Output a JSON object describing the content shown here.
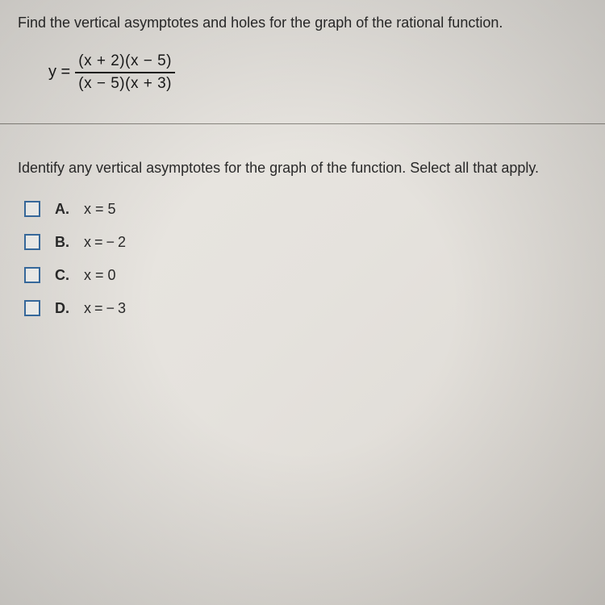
{
  "question": {
    "prompt": "Find the vertical asymptotes and holes for the graph of the rational function.",
    "equation": {
      "lhs": "y =",
      "numerator": "(x + 2)(x − 5)",
      "denominator": "(x − 5)(x + 3)"
    },
    "sub_prompt": "Identify any vertical asymptotes for the graph of the function. Select all that apply."
  },
  "choices": [
    {
      "label": "A.",
      "text": "x = 5"
    },
    {
      "label": "B.",
      "text": "x = − 2"
    },
    {
      "label": "C.",
      "text": "x = 0"
    },
    {
      "label": "D.",
      "text": "x = − 3"
    }
  ],
  "style": {
    "checkbox_border": "#3a6fa5",
    "text_color": "#2a2a2a",
    "font_family": "Arial",
    "question_fontsize": 18,
    "equation_fontsize": 20
  }
}
